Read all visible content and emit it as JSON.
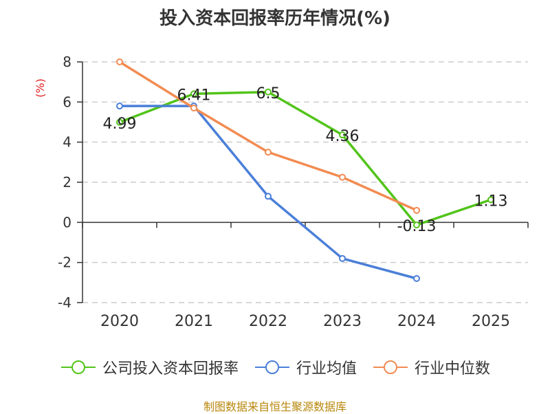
{
  "chart_data": {
    "type": "line",
    "title": "投入资本回报率历年情况(%)",
    "ylabel": "(%)",
    "xlabel": "",
    "categories": [
      "2020",
      "2021",
      "2022",
      "2023",
      "2024",
      "2025"
    ],
    "ylim": [
      -4,
      8
    ],
    "yticks": [
      8,
      6,
      4,
      2,
      0,
      -2,
      -4
    ],
    "grid": true,
    "series": [
      {
        "name": "公司投入资本回报率",
        "color": "#52c41a",
        "values": [
          4.99,
          6.41,
          6.5,
          4.36,
          -0.13,
          1.13
        ],
        "labels": [
          "4.99",
          "6.41",
          "6.5",
          "4.36",
          "-0.13",
          "1.13"
        ]
      },
      {
        "name": "行业均值",
        "color": "#4a7fd8",
        "values": [
          5.8,
          5.8,
          1.3,
          -1.8,
          -2.8,
          null
        ]
      },
      {
        "name": "行业中位数",
        "color": "#f28b52",
        "values": [
          8.0,
          5.7,
          3.5,
          2.25,
          0.6,
          null
        ]
      }
    ]
  },
  "footer": "制图数据来自恒生聚源数据库"
}
